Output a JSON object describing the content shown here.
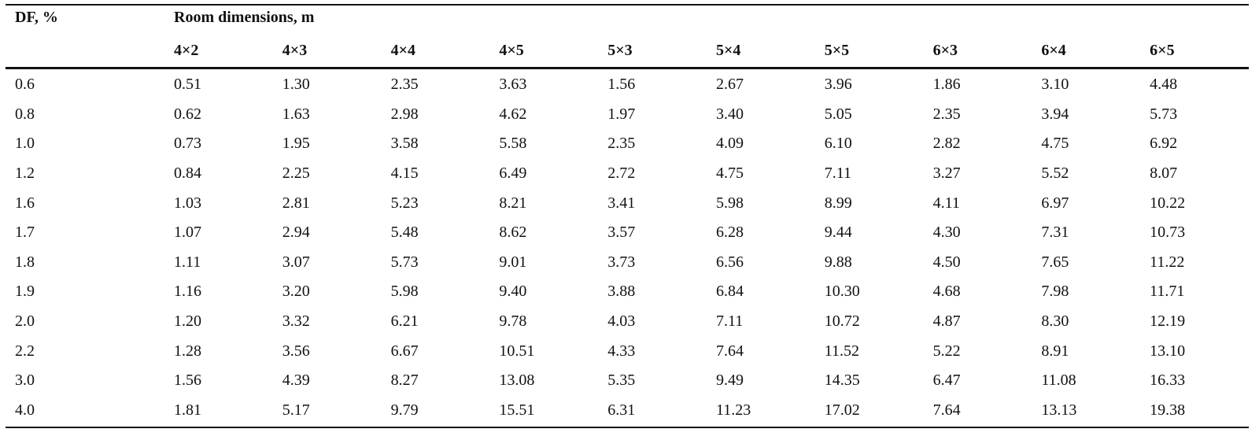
{
  "table": {
    "row_header_label": "DF, %",
    "group_header_label": "Room dimensions, m",
    "columns": [
      "4×2",
      "4×3",
      "4×4",
      "4×5",
      "5×3",
      "5×4",
      "5×5",
      "6×3",
      "6×4",
      "6×5"
    ],
    "rows": [
      {
        "df": "0.6",
        "values": [
          "0.51",
          "1.30",
          "2.35",
          "3.63",
          "1.56",
          "2.67",
          "3.96",
          "1.86",
          "3.10",
          "4.48"
        ]
      },
      {
        "df": "0.8",
        "values": [
          "0.62",
          "1.63",
          "2.98",
          "4.62",
          "1.97",
          "3.40",
          "5.05",
          "2.35",
          "3.94",
          "5.73"
        ]
      },
      {
        "df": "1.0",
        "values": [
          "0.73",
          "1.95",
          "3.58",
          "5.58",
          "2.35",
          "4.09",
          "6.10",
          "2.82",
          "4.75",
          "6.92"
        ]
      },
      {
        "df": "1.2",
        "values": [
          "0.84",
          "2.25",
          "4.15",
          "6.49",
          "2.72",
          "4.75",
          "7.11",
          "3.27",
          "5.52",
          "8.07"
        ]
      },
      {
        "df": "1.6",
        "values": [
          "1.03",
          "2.81",
          "5.23",
          "8.21",
          "3.41",
          "5.98",
          "8.99",
          "4.11",
          "6.97",
          "10.22"
        ]
      },
      {
        "df": "1.7",
        "values": [
          "1.07",
          "2.94",
          "5.48",
          "8.62",
          "3.57",
          "6.28",
          "9.44",
          "4.30",
          "7.31",
          "10.73"
        ]
      },
      {
        "df": "1.8",
        "values": [
          "1.11",
          "3.07",
          "5.73",
          "9.01",
          "3.73",
          "6.56",
          "9.88",
          "4.50",
          "7.65",
          "11.22"
        ]
      },
      {
        "df": "1.9",
        "values": [
          "1.16",
          "3.20",
          "5.98",
          "9.40",
          "3.88",
          "6.84",
          "10.30",
          "4.68",
          "7.98",
          "11.71"
        ]
      },
      {
        "df": "2.0",
        "values": [
          "1.20",
          "3.32",
          "6.21",
          "9.78",
          "4.03",
          "7.11",
          "10.72",
          "4.87",
          "8.30",
          "12.19"
        ]
      },
      {
        "df": "2.2",
        "values": [
          "1.28",
          "3.56",
          "6.67",
          "10.51",
          "4.33",
          "7.64",
          "11.52",
          "5.22",
          "8.91",
          "13.10"
        ]
      },
      {
        "df": "3.0",
        "values": [
          "1.56",
          "4.39",
          "8.27",
          "13.08",
          "5.35",
          "9.49",
          "14.35",
          "6.47",
          "11.08",
          "16.33"
        ]
      },
      {
        "df": "4.0",
        "values": [
          "1.81",
          "5.17",
          "9.79",
          "15.51",
          "6.31",
          "11.23",
          "17.02",
          "7.64",
          "13.13",
          "19.38"
        ]
      }
    ]
  }
}
